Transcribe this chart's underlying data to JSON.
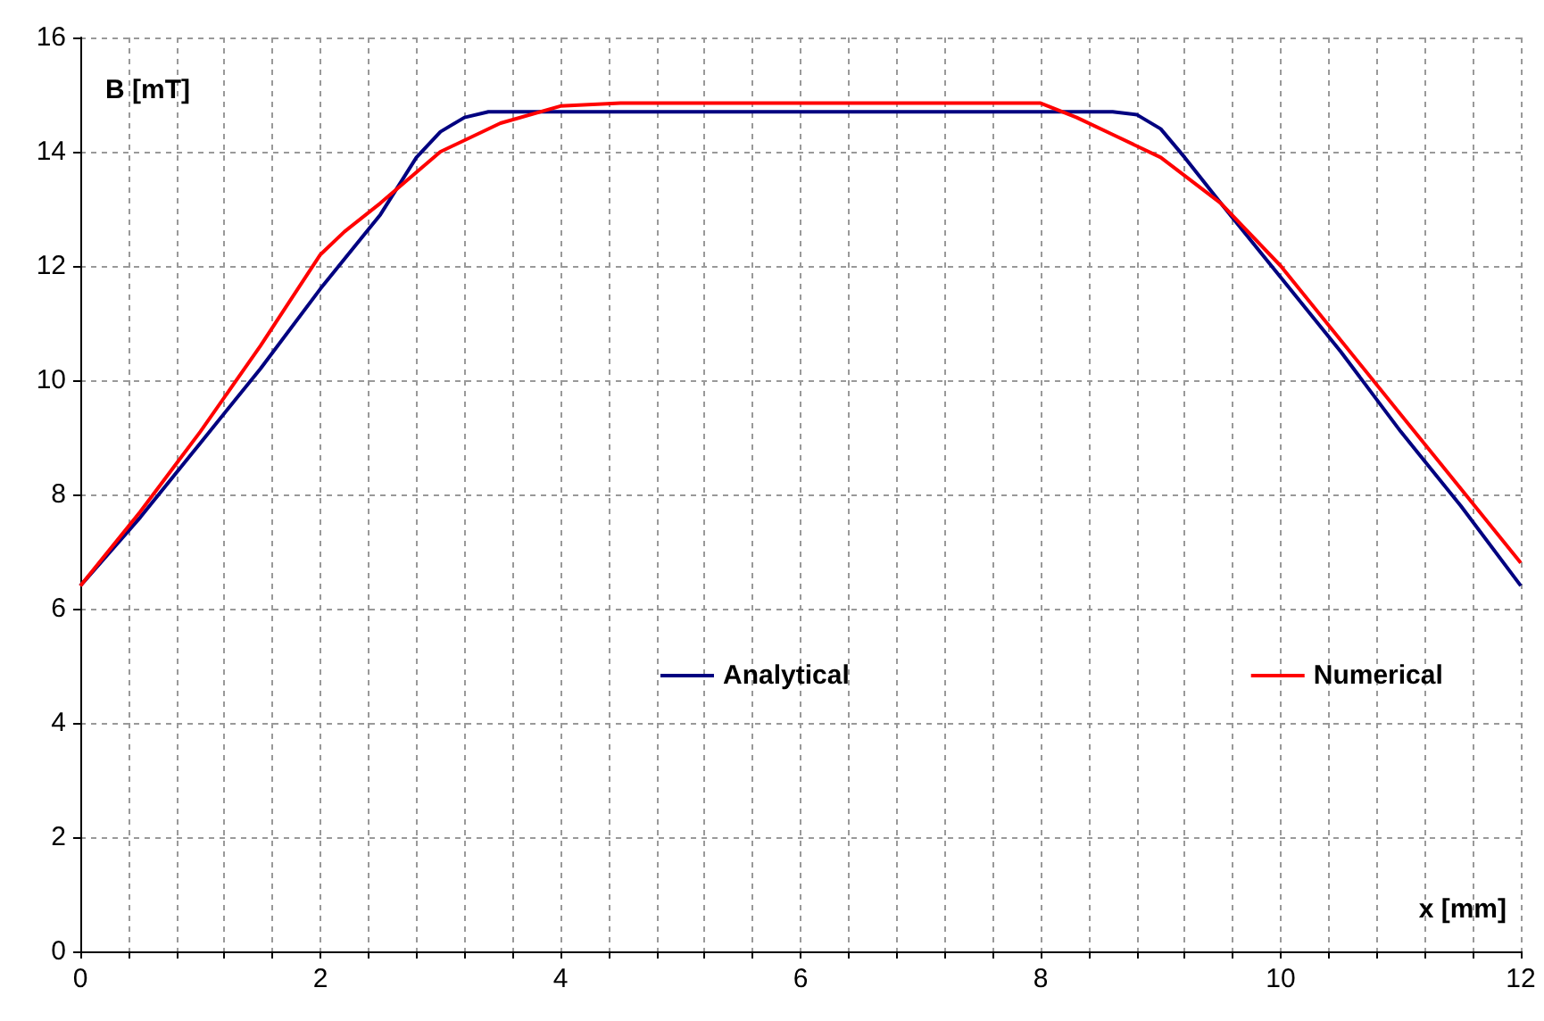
{
  "chart_data": {
    "type": "line",
    "xlabel": "x [mm]",
    "ylabel": "B [mT]",
    "xlim": [
      0,
      12
    ],
    "ylim": [
      0,
      16
    ],
    "xticks": [
      0,
      {
        "value": 0.4,
        "label": null
      },
      {
        "value": 0.8,
        "label": null
      },
      {
        "value": 1.2,
        "label": null
      },
      {
        "value": 1.6,
        "label": null
      },
      2,
      {
        "value": 2.4,
        "label": null
      },
      {
        "value": 2.8,
        "label": null
      },
      {
        "value": 3.2,
        "label": null
      },
      {
        "value": 3.6,
        "label": null
      },
      4,
      {
        "value": 4.4,
        "label": null
      },
      {
        "value": 4.8,
        "label": null
      },
      {
        "value": 5.2,
        "label": null
      },
      {
        "value": 5.6,
        "label": null
      },
      6,
      {
        "value": 6.4,
        "label": null
      },
      {
        "value": 6.8,
        "label": null
      },
      {
        "value": 7.2,
        "label": null
      },
      {
        "value": 7.6,
        "label": null
      },
      8,
      {
        "value": 8.4,
        "label": null
      },
      {
        "value": 8.8,
        "label": null
      },
      {
        "value": 9.2,
        "label": null
      },
      {
        "value": 9.6,
        "label": null
      },
      10,
      {
        "value": 10.4,
        "label": null
      },
      {
        "value": 10.8,
        "label": null
      },
      {
        "value": 11.2,
        "label": null
      },
      {
        "value": 11.6,
        "label": null
      },
      12
    ],
    "yticks": [
      0,
      2,
      4,
      6,
      8,
      10,
      12,
      14,
      16
    ],
    "grid": true,
    "legend": "center",
    "marker": "none",
    "line_style": "solid",
    "series": [
      {
        "name": "Analytical",
        "color": "#000080",
        "x": [
          0,
          0.5,
          1,
          1.5,
          2,
          2.5,
          2.8,
          3,
          3.2,
          3.4,
          4,
          8,
          8.6,
          8.8,
          9,
          9.2,
          9.5,
          10,
          10.5,
          11,
          11.5,
          12
        ],
        "values": [
          6.4,
          7.6,
          8.9,
          10.2,
          11.6,
          12.9,
          13.9,
          14.35,
          14.6,
          14.7,
          14.7,
          14.7,
          14.7,
          14.65,
          14.4,
          13.9,
          13.1,
          11.8,
          10.5,
          9.1,
          7.8,
          6.4
        ]
      },
      {
        "name": "Numerical",
        "color": "#ff0000",
        "x": [
          0,
          0.5,
          1,
          1.5,
          2,
          2.2,
          2.5,
          3,
          3.5,
          4,
          4.5,
          8,
          8.3,
          8.6,
          9,
          9.5,
          10,
          10.5,
          11,
          11.5,
          12
        ],
        "values": [
          6.4,
          7.7,
          9.1,
          10.6,
          12.2,
          12.6,
          13.1,
          14.0,
          14.5,
          14.8,
          14.85,
          14.85,
          14.6,
          14.3,
          13.9,
          13.1,
          12.0,
          10.7,
          9.4,
          8.1,
          6.8
        ]
      }
    ]
  }
}
